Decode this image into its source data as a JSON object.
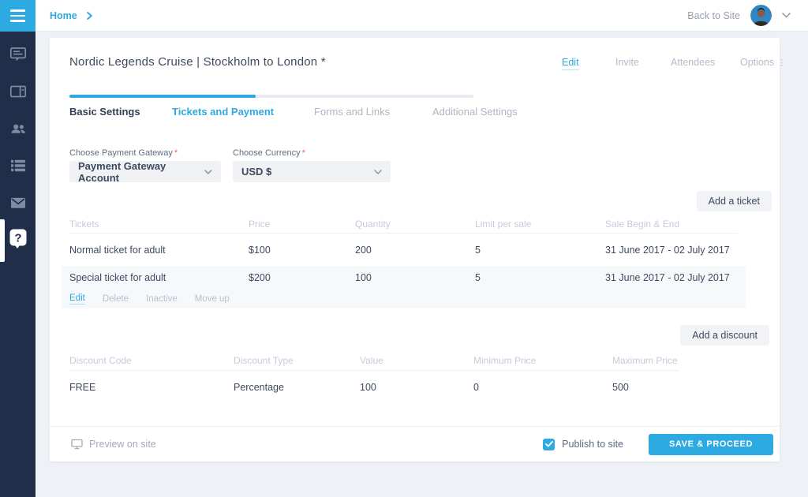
{
  "topbar": {
    "breadcrumb": "Home",
    "back_to_site": "Back to Site"
  },
  "sidebar": {
    "icons": [
      "announcement",
      "panel",
      "people",
      "list",
      "mail",
      "help"
    ]
  },
  "event": {
    "title": "Nordic Legends Cruise | Stockholm to London *",
    "actions": [
      {
        "label": "Edit",
        "active": true
      },
      {
        "label": "Invite",
        "active": false
      },
      {
        "label": "Attendees",
        "active": false
      },
      {
        "label": "Options",
        "active": false
      }
    ],
    "tabs": [
      {
        "label": "Basic Settings",
        "state": "done"
      },
      {
        "label": "Tickets and Payment",
        "state": "active"
      },
      {
        "label": "Forms and Links",
        "state": "upcoming"
      },
      {
        "label": "Additional Settings",
        "state": "upcoming"
      }
    ],
    "progress_percent": 46
  },
  "payment": {
    "gateway_label": "Choose Payment Gateway",
    "gateway_required": "*",
    "gateway_value": "Payment Gateway Account",
    "currency_label": "Choose Currency",
    "currency_required": "*",
    "currency_value": "USD $"
  },
  "tickets": {
    "add_button": "Add a ticket",
    "headers": [
      "Tickets",
      "Price",
      "Quantity",
      "Limit per sale",
      "Sale Begin & End"
    ],
    "rows": [
      {
        "name": "Normal ticket for adult",
        "price": "$100",
        "quantity": "200",
        "limit_per_sale": "5",
        "sale_period": "31 June 2017 - 02 July 2017"
      },
      {
        "name": "Special ticket for adult",
        "price": "$200",
        "quantity": "100",
        "limit_per_sale": "5",
        "sale_period": "31 June 2017 - 02 July 2017"
      }
    ],
    "row_actions": [
      "Edit",
      "Delete",
      "Inactive",
      "Move up"
    ],
    "options_dots": "⋮"
  },
  "discounts": {
    "add_button": "Add a discount",
    "headers": [
      "Discount Code",
      "Discount Type",
      "Value",
      "Minimum Price",
      "Maximum Price"
    ],
    "rows": [
      {
        "code": "FREE",
        "type": "Percentage",
        "value": "100",
        "minimum_price": "0",
        "maximum_price": "500"
      }
    ]
  },
  "footer": {
    "preview_label": "Preview on site",
    "publish_label": "Publish to site",
    "publish_checked": true,
    "save_label": "SAVE & PROCEED"
  },
  "colors": {
    "accent": "#2caae1",
    "sidebar_bg": "#202e4a",
    "page_bg": "#eef1f5",
    "required": "#f0625f",
    "muted_text": "#c5ccd8",
    "row_highlight": "#f7f8fb"
  }
}
